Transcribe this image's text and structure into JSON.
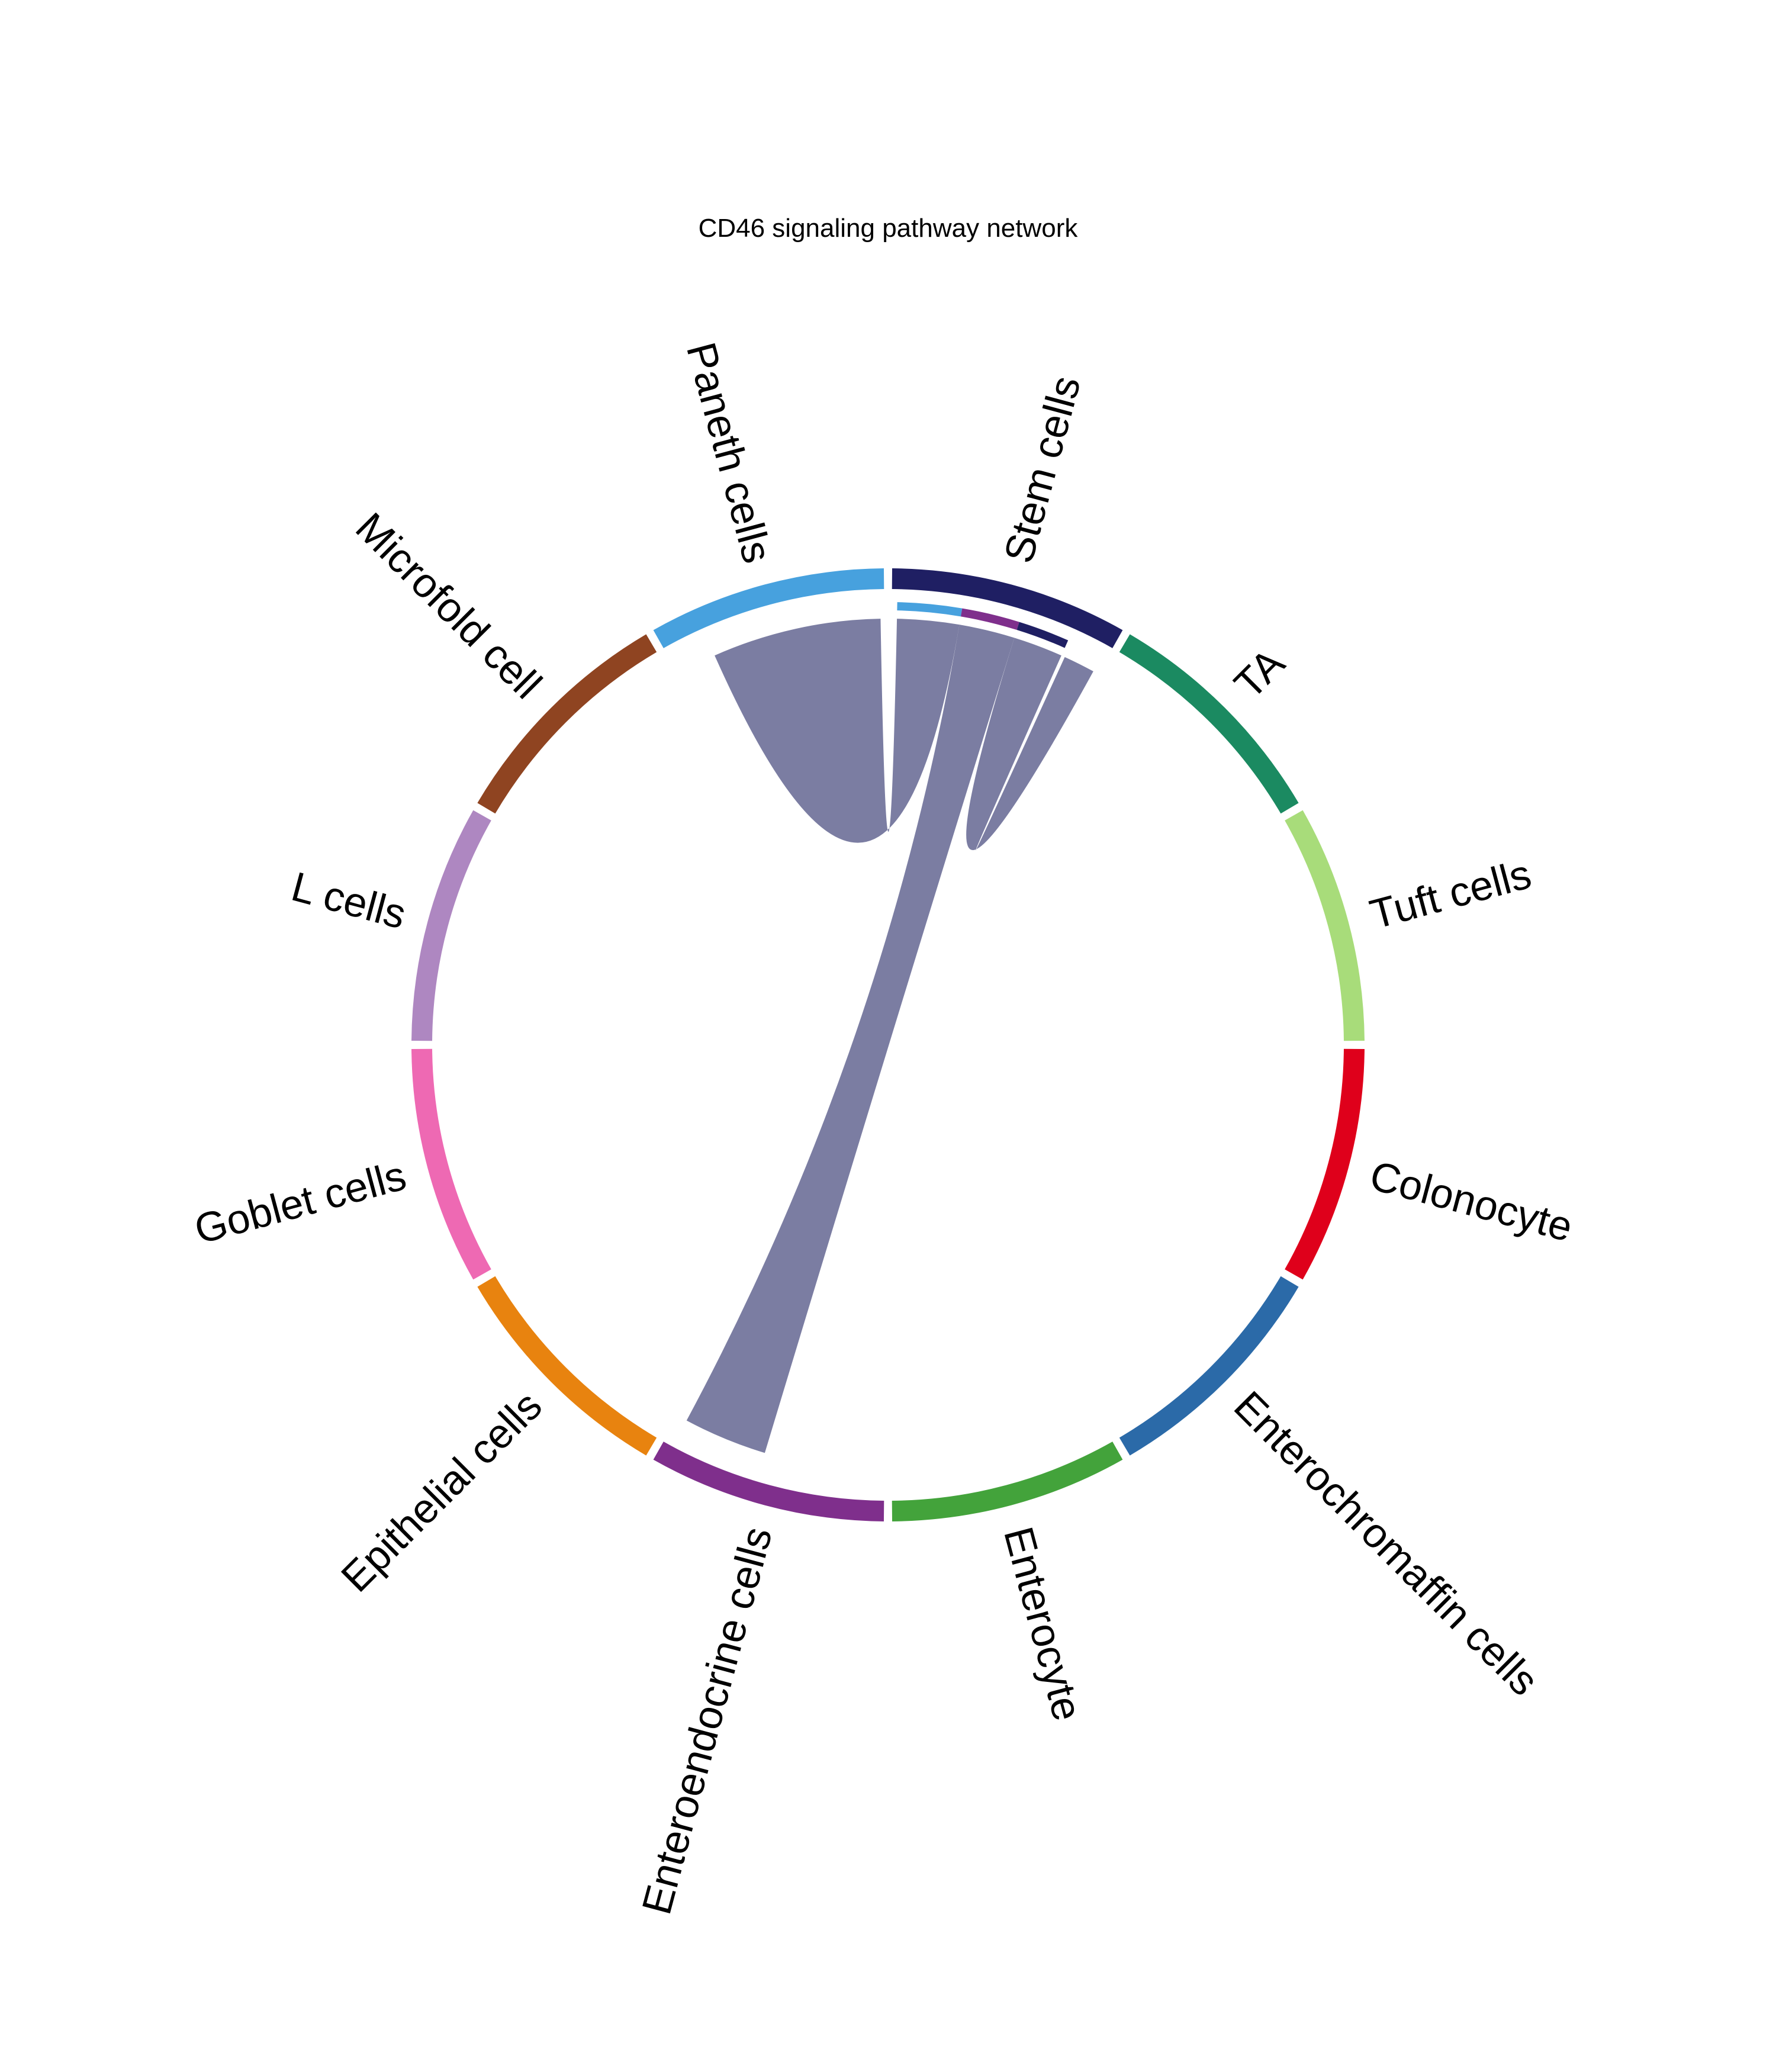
{
  "chart_data": {
    "type": "chord",
    "title": "CD46 signaling pathway network",
    "sectors": [
      {
        "name": "Stem cells",
        "color": "#1f1f63"
      },
      {
        "name": "TA",
        "color": "#1b8a61"
      },
      {
        "name": "Tuft cells",
        "color": "#a8dc7a"
      },
      {
        "name": "Colonocyte",
        "color": "#df001b"
      },
      {
        "name": "Enterochromaffin cells",
        "color": "#2b6aa8"
      },
      {
        "name": "Enterocyte",
        "color": "#43a33b"
      },
      {
        "name": "Enteroendocrine cells",
        "color": "#7f2f8c"
      },
      {
        "name": "Epithelial cells",
        "color": "#e8830f"
      },
      {
        "name": "Goblet cells",
        "color": "#ee69b3"
      },
      {
        "name": "L cells",
        "color": "#ae87c1"
      },
      {
        "name": "Microfold cell",
        "color": "#8f4421"
      },
      {
        "name": "Paneth cells",
        "color": "#47a1de"
      }
    ],
    "links": [
      {
        "source": "Stem cells",
        "target": "Paneth cells",
        "weight": 1.0,
        "color": "#787aa0"
      },
      {
        "source": "Stem cells",
        "target": "Enteroendocrine cells",
        "weight": 0.9,
        "color": "#787aa0"
      },
      {
        "source": "Stem cells",
        "target": "Stem cells",
        "weight": 0.8,
        "color": "#787aa0"
      }
    ]
  }
}
